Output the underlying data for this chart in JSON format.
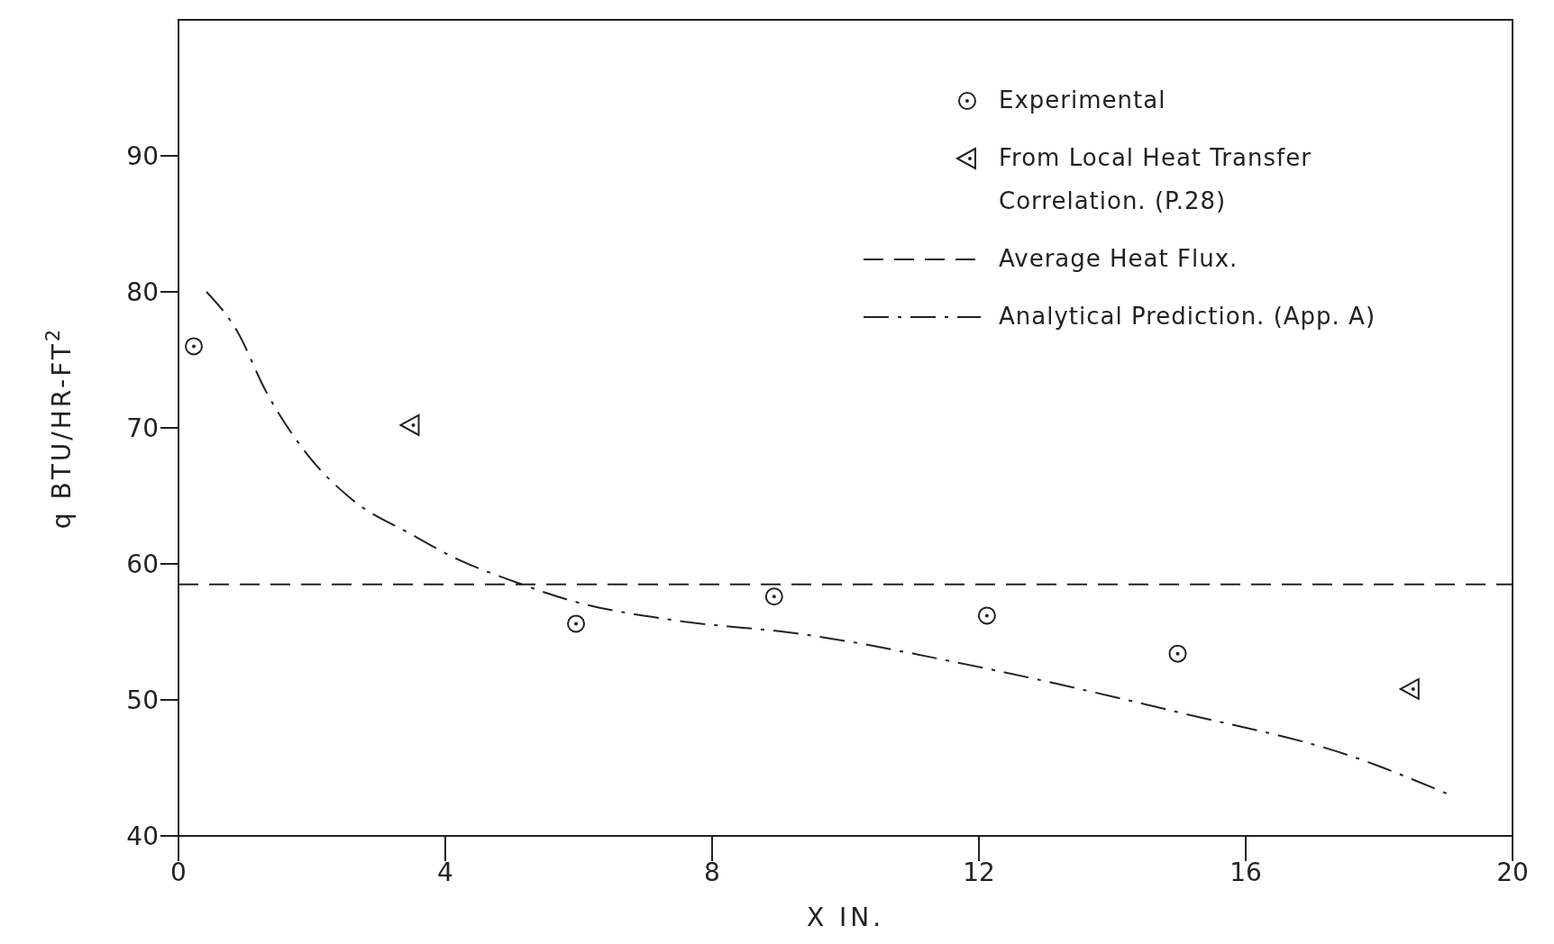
{
  "chart_data": {
    "type": "scatter",
    "xlabel": "X IN.",
    "ylabel": "q   BTU/HR-FT$^{2}$",
    "xlim": [
      0,
      20
    ],
    "xticks": [
      0,
      4,
      8,
      12,
      16,
      20
    ],
    "ylim": [
      40,
      100
    ],
    "yticks": [
      40,
      50,
      60,
      70,
      80,
      90
    ],
    "grid": false,
    "legend": "top right",
    "series": [
      {
        "name": "Experimental",
        "marker": "circle",
        "color": "#222222",
        "x": [
          0.23,
          5.96,
          8.93,
          12.12,
          14.98
        ],
        "values": [
          76,
          55.6,
          57.6,
          56.2,
          53.4
        ]
      },
      {
        "name": "From Local Heat Transfer Correlation. (P.28)",
        "marker": "triangle",
        "color": "#222222",
        "x": [
          3.48,
          18.47
        ],
        "values": [
          70.2,
          50.8
        ]
      },
      {
        "name": "Average Heat Flux.",
        "type": "line",
        "marker": "none",
        "line_style": "dashed",
        "color": "#222222",
        "x": [
          0,
          20
        ],
        "values": [
          58.5,
          58.5
        ]
      },
      {
        "name": "Analytical Prediction. (App. A)",
        "type": "line",
        "marker": "none",
        "line_style": "dashdot",
        "color": "#222222",
        "x": [
          0.42,
          0.88,
          1.31,
          1.89,
          2.61,
          3.48,
          4.2,
          4.92,
          5.96,
          7.52,
          9.25,
          12.02,
          14.98,
          17.62,
          19.02
        ],
        "values": [
          80,
          77.1,
          72.7,
          68.3,
          64.7,
          62.2,
          60.3,
          58.9,
          57.2,
          55.8,
          54.9,
          52.4,
          49.1,
          45.8,
          43.1
        ]
      }
    ]
  }
}
